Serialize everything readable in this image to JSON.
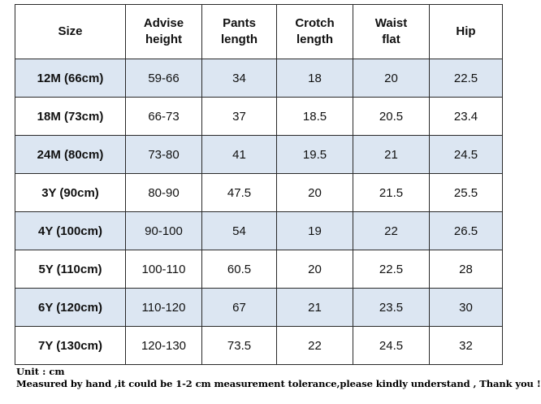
{
  "table": {
    "headers": [
      "Size",
      "Advise\nheight",
      "Pants\nlength",
      "Crotch\nlength",
      "Waist\nflat",
      "Hip"
    ],
    "rows": [
      [
        "12M (66cm)",
        "59-66",
        "34",
        "18",
        "20",
        "22.5"
      ],
      [
        "18M (73cm)",
        "66-73",
        "37",
        "18.5",
        "20.5",
        "23.4"
      ],
      [
        "24M (80cm)",
        "73-80",
        "41",
        "19.5",
        "21",
        "24.5"
      ],
      [
        "3Y (90cm)",
        "80-90",
        "47.5",
        "20",
        "21.5",
        "25.5"
      ],
      [
        "4Y (100cm)",
        "90-100",
        "54",
        "19",
        "22",
        "26.5"
      ],
      [
        "5Y (110cm)",
        "100-110",
        "60.5",
        "20",
        "22.5",
        "28"
      ],
      [
        "6Y (120cm)",
        "110-120",
        "67",
        "21",
        "23.5",
        "30"
      ],
      [
        "7Y (130cm)",
        "120-130",
        "73.5",
        "22",
        "24.5",
        "32"
      ]
    ],
    "shaded_color": "#dce6f2"
  },
  "notes": {
    "unit": "Unit : cm",
    "tolerance": "Measured by hand ,it could be 1-2 cm measurement tolerance,please kindly understand , Thank you !"
  }
}
